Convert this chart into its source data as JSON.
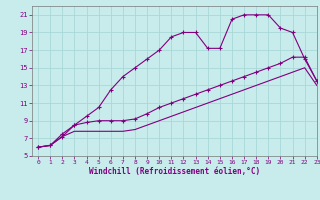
{
  "xlabel": "Windchill (Refroidissement éolien,°C)",
  "x_values": [
    0,
    1,
    2,
    3,
    4,
    5,
    6,
    7,
    8,
    9,
    10,
    11,
    12,
    13,
    14,
    15,
    16,
    17,
    18,
    19,
    20,
    21,
    22,
    23
  ],
  "line1_y": [
    6.0,
    6.2,
    7.2,
    8.5,
    9.5,
    10.5,
    12.5,
    14.0,
    15.0,
    16.0,
    17.0,
    18.5,
    19.0,
    19.0,
    17.2,
    17.2,
    20.5,
    21.0,
    21.0,
    21.0,
    19.5,
    19.0,
    16.0,
    13.5
  ],
  "line2_y": [
    6.0,
    6.2,
    7.5,
    8.5,
    8.8,
    9.0,
    9.0,
    9.0,
    9.2,
    9.8,
    10.5,
    11.0,
    11.5,
    12.0,
    12.5,
    13.0,
    13.5,
    14.0,
    14.5,
    15.0,
    15.5,
    16.2,
    16.2,
    13.5
  ],
  "line3_y": [
    6.0,
    6.2,
    7.2,
    7.8,
    7.8,
    7.8,
    7.8,
    7.8,
    8.0,
    8.5,
    9.0,
    9.5,
    10.0,
    10.5,
    11.0,
    11.5,
    12.0,
    12.5,
    13.0,
    13.5,
    14.0,
    14.5,
    15.0,
    13.0
  ],
  "line_color": "#800080",
  "bg_color": "#c8ecec",
  "grid_color": "#a8d8d8",
  "ylim": [
    5,
    22
  ],
  "xlim": [
    -0.5,
    23
  ],
  "yticks": [
    5,
    7,
    9,
    11,
    13,
    15,
    17,
    19,
    21
  ],
  "xticks": [
    0,
    1,
    2,
    3,
    4,
    5,
    6,
    7,
    8,
    9,
    10,
    11,
    12,
    13,
    14,
    15,
    16,
    17,
    18,
    19,
    20,
    21,
    22,
    23
  ]
}
